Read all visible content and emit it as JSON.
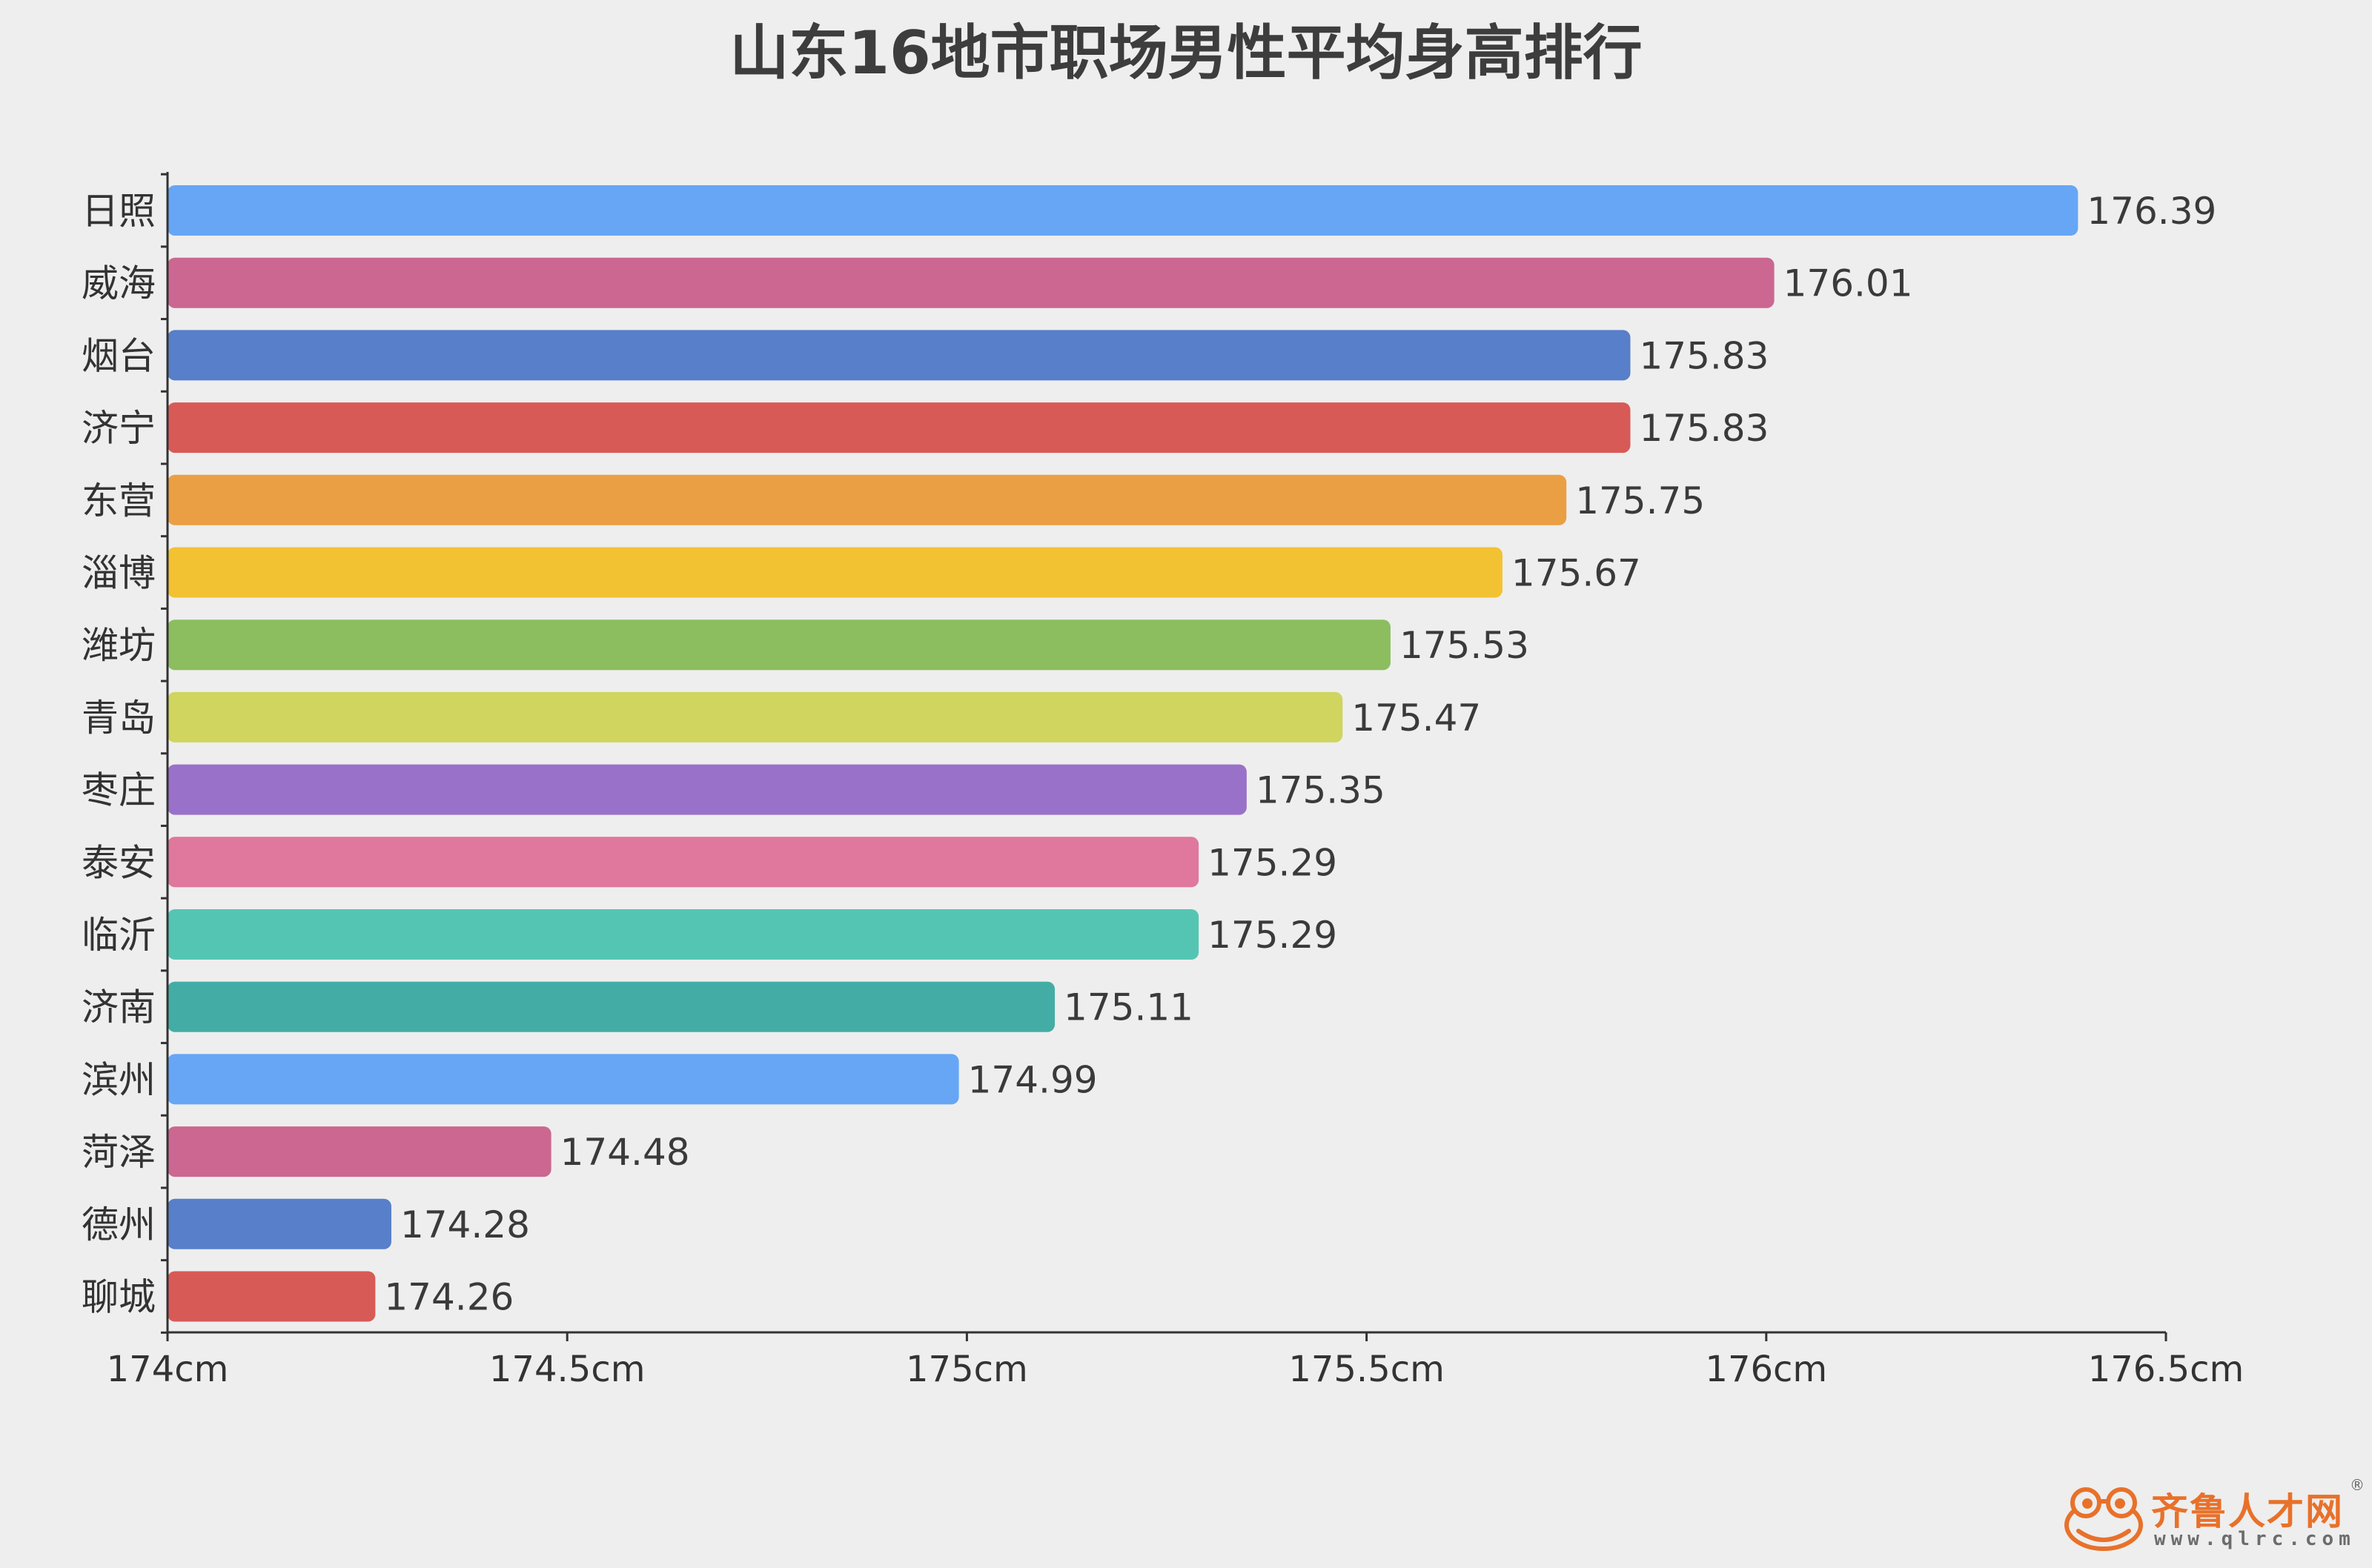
{
  "chart_data": {
    "type": "bar",
    "orientation": "horizontal",
    "title": "山东16地市职场男性平均身高排行",
    "categories": [
      "日照",
      "威海",
      "烟台",
      "济宁",
      "东营",
      "淄博",
      "潍坊",
      "青岛",
      "枣庄",
      "泰安",
      "临沂",
      "济南",
      "滨州",
      "菏泽",
      "德州",
      "聊城"
    ],
    "values": [
      176.39,
      176.01,
      175.83,
      175.83,
      175.75,
      175.67,
      175.53,
      175.47,
      175.35,
      175.29,
      175.29,
      175.11,
      174.99,
      174.48,
      174.28,
      174.26
    ],
    "value_labels": [
      "176.39",
      "176.01",
      "175.83",
      "175.83",
      "175.75",
      "175.67",
      "175.53",
      "175.47",
      "175.35",
      "175.29",
      "175.29",
      "175.11",
      "174.99",
      "174.48",
      "174.28",
      "174.26"
    ],
    "colors": [
      "#66a6f5",
      "#cb6790",
      "#577fca",
      "#d85a57",
      "#eb9f44",
      "#f3c232",
      "#8cbd5f",
      "#cfd55e",
      "#9a71c9",
      "#e0779d",
      "#55c5b3",
      "#43ada5",
      "#66a6f5",
      "#cb6790",
      "#577fca",
      "#d85a57"
    ],
    "xlim": [
      174,
      176.5
    ],
    "x_ticks": [
      174,
      174.5,
      175,
      175.5,
      176,
      176.5
    ],
    "x_tick_labels": [
      "174cm",
      "174.5cm",
      "175cm",
      "175.5cm",
      "176cm",
      "176.5cm"
    ],
    "xlabel": "",
    "ylabel": "",
    "grid": false,
    "legend": "none"
  },
  "watermark": {
    "name": "齐鲁人才网",
    "url": "www.qlrc.com",
    "registered": "®",
    "color": "#e8712a"
  }
}
